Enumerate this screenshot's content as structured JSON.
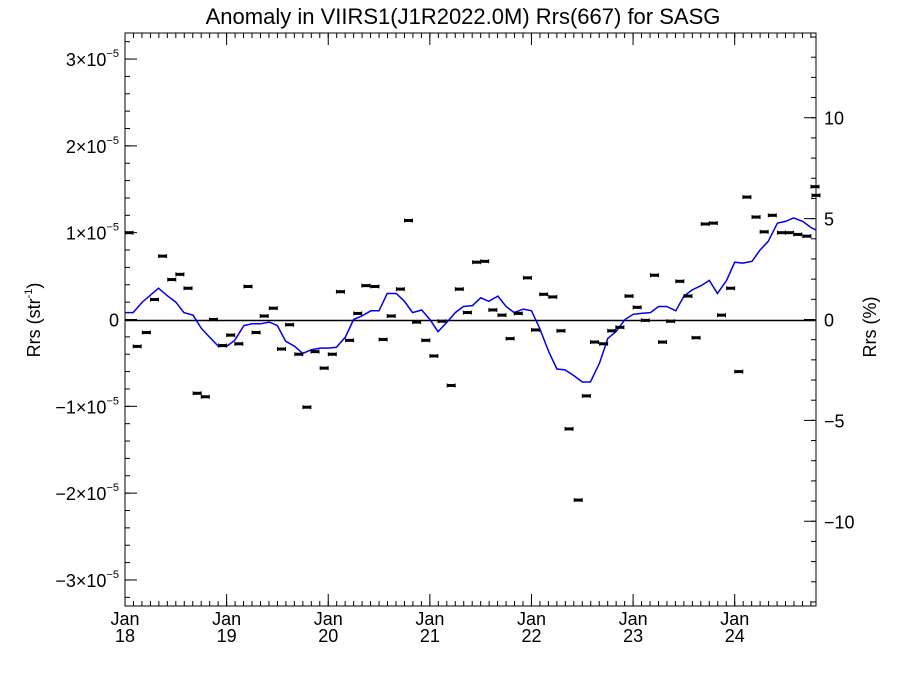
{
  "chart_data": {
    "type": "line",
    "title": "Anomaly in VIIRS1(J1R2022.0M) Rrs(667) for SASG",
    "ylabel_left": "Rrs (str",
    "ylabel_left_sup": "-1",
    "ylabel_left_close": ")",
    "ylabel_right": "Rrs (%)",
    "x_ticks": [
      {
        "month": "Jan",
        "year": "18",
        "t": 2018.0
      },
      {
        "month": "Jan",
        "year": "19",
        "t": 2019.0
      },
      {
        "month": "Jan",
        "year": "20",
        "t": 2020.0
      },
      {
        "month": "Jan",
        "year": "21",
        "t": 2021.0
      },
      {
        "month": "Jan",
        "year": "22",
        "t": 2022.0
      },
      {
        "month": "Jan",
        "year": "23",
        "t": 2023.0
      },
      {
        "month": "Jan",
        "year": "24",
        "t": 2024.0
      }
    ],
    "xlim": [
      2018.0,
      2024.8
    ],
    "left_axis": {
      "ylim": [
        -3.3e-05,
        3.3e-05
      ],
      "ticks": [
        {
          "value": 3e-05,
          "mant": "3",
          "exp": "-5",
          "zero": false
        },
        {
          "value": 2e-05,
          "mant": "2",
          "exp": "-5",
          "zero": false
        },
        {
          "value": 1e-05,
          "mant": "1",
          "exp": "-5",
          "zero": false
        },
        {
          "value": 0,
          "mant": "0",
          "exp": "",
          "zero": true
        },
        {
          "value": -1e-05,
          "mant": "-1",
          "exp": "-5",
          "zero": false
        },
        {
          "value": -2e-05,
          "mant": "-2",
          "exp": "-5",
          "zero": false
        },
        {
          "value": -3e-05,
          "mant": "-3",
          "exp": "-5",
          "zero": false
        }
      ]
    },
    "right_axis": {
      "ylim": [
        -14.2,
        14.2
      ],
      "ticks": [
        {
          "value": 10,
          "label": "10"
        },
        {
          "value": 5,
          "label": "5"
        },
        {
          "value": 0,
          "label": "0"
        },
        {
          "value": -5,
          "label": "−5"
        },
        {
          "value": -10,
          "label": "−10"
        }
      ]
    },
    "series": [
      {
        "kind": "points",
        "color": "#000000",
        "points": [
          [
            2018.04,
            1e-05
          ],
          [
            2018.12,
            -3.1e-06
          ],
          [
            2018.21,
            -1.5e-06
          ],
          [
            2018.29,
            2.3e-06
          ],
          [
            2018.37,
            7.3e-06
          ],
          [
            2018.46,
            4.6e-06
          ],
          [
            2018.54,
            5.2e-06
          ],
          [
            2018.62,
            3.6e-06
          ],
          [
            2018.71,
            -8.5e-06
          ],
          [
            2018.79,
            -8.9e-06
          ],
          [
            2018.87,
            0.0
          ],
          [
            2018.96,
            -3e-06
          ],
          [
            2019.04,
            -1.8e-06
          ],
          [
            2019.12,
            -2.8e-06
          ],
          [
            2019.21,
            3.8e-06
          ],
          [
            2019.29,
            -1.5e-06
          ],
          [
            2019.37,
            4e-07
          ],
          [
            2019.46,
            1.3e-06
          ],
          [
            2019.54,
            -3.4e-06
          ],
          [
            2019.62,
            -6e-07
          ],
          [
            2019.71,
            -4e-06
          ],
          [
            2019.79,
            -1.01e-05
          ],
          [
            2019.87,
            -3.7e-06
          ],
          [
            2019.96,
            -5.6e-06
          ],
          [
            2020.04,
            -4e-06
          ],
          [
            2020.12,
            3.2e-06
          ],
          [
            2020.21,
            -2.4e-06
          ],
          [
            2020.29,
            7e-07
          ],
          [
            2020.37,
            3.9e-06
          ],
          [
            2020.46,
            3.8e-06
          ],
          [
            2020.54,
            -2.3e-06
          ],
          [
            2020.62,
            4e-07
          ],
          [
            2020.71,
            3.5e-06
          ],
          [
            2020.79,
            1.14e-05
          ],
          [
            2020.87,
            -3e-07
          ],
          [
            2020.96,
            -2.4e-06
          ],
          [
            2021.04,
            -4.2e-06
          ],
          [
            2021.12,
            -2e-07
          ],
          [
            2021.21,
            -7.6e-06
          ],
          [
            2021.29,
            3.5e-06
          ],
          [
            2021.37,
            8e-07
          ],
          [
            2021.46,
            6.6e-06
          ],
          [
            2021.54,
            6.7e-06
          ],
          [
            2021.62,
            1.1e-06
          ],
          [
            2021.71,
            5e-07
          ],
          [
            2021.79,
            -2.2e-06
          ],
          [
            2021.87,
            7e-07
          ],
          [
            2021.96,
            4.8e-06
          ],
          [
            2022.04,
            -1.2e-06
          ],
          [
            2022.12,
            2.9e-06
          ],
          [
            2022.21,
            2.6e-06
          ],
          [
            2022.29,
            -1.3e-06
          ],
          [
            2022.37,
            -1.26e-05
          ],
          [
            2022.46,
            -2.08e-05
          ],
          [
            2022.54,
            -8.8e-06
          ],
          [
            2022.62,
            -2.6e-06
          ],
          [
            2022.71,
            -2.8e-06
          ],
          [
            2022.79,
            -1.3e-06
          ],
          [
            2022.87,
            -9e-07
          ],
          [
            2022.96,
            2.7e-06
          ],
          [
            2023.04,
            1.4e-06
          ],
          [
            2023.12,
            -1e-07
          ],
          [
            2023.21,
            5.1e-06
          ],
          [
            2023.29,
            -2.6e-06
          ],
          [
            2023.37,
            -2e-07
          ],
          [
            2023.46,
            4.4e-06
          ],
          [
            2023.54,
            2.7e-06
          ],
          [
            2023.62,
            -2.1e-06
          ],
          [
            2023.71,
            1.1e-05
          ],
          [
            2023.79,
            1.11e-05
          ],
          [
            2023.87,
            5e-07
          ],
          [
            2023.96,
            3.6e-06
          ],
          [
            2024.04,
            -6e-06
          ],
          [
            2024.12,
            1.41e-05
          ],
          [
            2024.21,
            1.18e-05
          ],
          [
            2024.29,
            1.01e-05
          ],
          [
            2024.37,
            1.2e-05
          ],
          [
            2024.46,
            1e-05
          ],
          [
            2024.54,
            1e-05
          ],
          [
            2024.62,
            9.8e-06
          ],
          [
            2024.71,
            9.6e-06
          ],
          [
            2024.79,
            1.53e-05
          ],
          [
            2024.8,
            1.43e-05
          ]
        ]
      },
      {
        "kind": "line",
        "color": "#0000ee",
        "points": [
          [
            2018.0,
            8e-07
          ],
          [
            2018.08,
            8e-07
          ],
          [
            2018.17,
            2e-06
          ],
          [
            2018.25,
            2.8e-06
          ],
          [
            2018.33,
            3.6e-06
          ],
          [
            2018.42,
            2.7e-06
          ],
          [
            2018.5,
            2e-06
          ],
          [
            2018.58,
            8e-07
          ],
          [
            2018.67,
            5e-07
          ],
          [
            2018.75,
            -1e-06
          ],
          [
            2018.83,
            -2e-06
          ],
          [
            2018.92,
            -3.1e-06
          ],
          [
            2019.0,
            -3.1e-06
          ],
          [
            2019.08,
            -2.4e-06
          ],
          [
            2019.17,
            -7e-07
          ],
          [
            2019.25,
            -5e-07
          ],
          [
            2019.33,
            -5e-07
          ],
          [
            2019.42,
            -3e-07
          ],
          [
            2019.5,
            -7e-07
          ],
          [
            2019.58,
            -2.5e-06
          ],
          [
            2019.67,
            -3.1e-06
          ],
          [
            2019.75,
            -3.9e-06
          ],
          [
            2019.83,
            -3.5e-06
          ],
          [
            2019.92,
            -3.3e-06
          ],
          [
            2020.0,
            -3.3e-06
          ],
          [
            2020.08,
            -3.2e-06
          ],
          [
            2020.17,
            -2e-06
          ],
          [
            2020.25,
            0.0
          ],
          [
            2020.33,
            4e-07
          ],
          [
            2020.42,
            1e-06
          ],
          [
            2020.5,
            1e-06
          ],
          [
            2020.58,
            3e-06
          ],
          [
            2020.67,
            3e-06
          ],
          [
            2020.75,
            2.1e-06
          ],
          [
            2020.83,
            8e-07
          ],
          [
            2020.92,
            1.1e-06
          ],
          [
            2021.0,
            0.0
          ],
          [
            2021.08,
            -1.4e-06
          ],
          [
            2021.17,
            -3e-07
          ],
          [
            2021.25,
            8e-07
          ],
          [
            2021.33,
            1.5e-06
          ],
          [
            2021.42,
            1.6e-06
          ],
          [
            2021.5,
            2.5e-06
          ],
          [
            2021.58,
            2.1e-06
          ],
          [
            2021.67,
            2.7e-06
          ],
          [
            2021.75,
            1.5e-06
          ],
          [
            2021.83,
            8e-07
          ],
          [
            2021.92,
            1.2e-06
          ],
          [
            2022.0,
            1e-06
          ],
          [
            2022.08,
            -1e-06
          ],
          [
            2022.17,
            -3.7e-06
          ],
          [
            2022.25,
            -5.7e-06
          ],
          [
            2022.33,
            -5.8e-06
          ],
          [
            2022.42,
            -6.5e-06
          ],
          [
            2022.5,
            -7.2e-06
          ],
          [
            2022.58,
            -7.2e-06
          ],
          [
            2022.67,
            -5e-06
          ],
          [
            2022.75,
            -2.2e-06
          ],
          [
            2022.83,
            -1.4e-06
          ],
          [
            2022.92,
            0.0
          ],
          [
            2023.0,
            6e-07
          ],
          [
            2023.08,
            7e-07
          ],
          [
            2023.17,
            8e-07
          ],
          [
            2023.25,
            1.5e-06
          ],
          [
            2023.33,
            1.5e-06
          ],
          [
            2023.42,
            1e-06
          ],
          [
            2023.5,
            2.7e-06
          ],
          [
            2023.58,
            3.4e-06
          ],
          [
            2023.67,
            3.9e-06
          ],
          [
            2023.75,
            4.5e-06
          ],
          [
            2023.83,
            3e-06
          ],
          [
            2023.92,
            4.5e-06
          ],
          [
            2024.0,
            6.6e-06
          ],
          [
            2024.08,
            6.5e-06
          ],
          [
            2024.17,
            6.7e-06
          ],
          [
            2024.25,
            8e-06
          ],
          [
            2024.33,
            9e-06
          ],
          [
            2024.42,
            1.11e-05
          ],
          [
            2024.5,
            1.13e-05
          ],
          [
            2024.58,
            1.17e-05
          ],
          [
            2024.67,
            1.13e-05
          ],
          [
            2024.75,
            1.06e-05
          ],
          [
            2024.8,
            1.03e-05
          ]
        ]
      }
    ],
    "zero_line": true,
    "grid": false
  }
}
